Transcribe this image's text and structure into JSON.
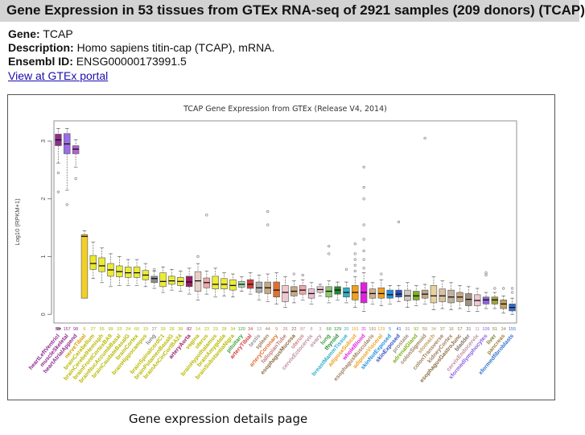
{
  "header": {
    "title": "Gene Expression in 53 tissues from GTEx RNA-seq of 2921 samples (209 donors) (TCAP)"
  },
  "info": {
    "gene_label": "Gene:",
    "gene_value": "TCAP",
    "description_label": "Description:",
    "description_value": "Homo sapiens titin-cap (TCAP), mRNA.",
    "ensembl_label": "Ensembl ID:",
    "ensembl_value": "ENSG00000173991.5",
    "portal_link": "View at GTEx portal"
  },
  "caption": "Gene expression details page",
  "chart_data": {
    "type": "box",
    "title": "TCAP Gene Expression from GTEx (Release V4, 2014)",
    "ylabel": "Log10 (RPKM+1)",
    "ylim": [
      -0.15,
      3.35
    ],
    "yticks": [
      0,
      1,
      2,
      3
    ],
    "grid": false,
    "n_label": "N=",
    "categories": [
      "heartLeftVentricl",
      "muscleSkeletal",
      "heartAtrialAppend",
      "nerveTibial",
      "brainCerebellum",
      "brainCerebelHemisph",
      "brainFrontCortexBA9",
      "brainNucAccumbBasal",
      "brainCaudateBasalG",
      "brainCortex",
      "brainHippocampus",
      "lung",
      "brainSpinalcordC1",
      "brainPutamenBasalG",
      "brainAnCinCortBA24",
      "arteryAorta",
      "vagina",
      "uterus",
      "brainHypothalamus",
      "brainAmygdala",
      "brainSubstantiaNigra",
      "pituitary",
      "arteryTibial",
      "testis",
      "spleen",
      "arteryCoronary",
      "fallopianTube",
      "esophagusMucosa",
      "uterus",
      "cervixEctocervix",
      "ovary",
      "lung",
      "thyroid",
      "breastMammTissue",
      "adiposeSubcut",
      "wholeBlood",
      "esophagusMuscularis",
      "adiposeVisceral",
      "skinNotExposed",
      "skinExposed",
      "prostate",
      "adrenalGland",
      "colonSigmoid",
      "stomach",
      "colonTransverse",
      "kidneyCortex",
      "esophagusGastroJunc",
      "bladder",
      "cervixEndocervix",
      "xformedlymphocytes",
      "liver",
      "pancreas",
      "xformedfibroblasts"
    ],
    "colors": [
      "#8e2c8e",
      "#9a6ee6",
      "#b460d8",
      "#f2cf27",
      "#ece82c",
      "#ecec36",
      "#ecec36",
      "#ecec36",
      "#ecec36",
      "#ecec36",
      "#ecec36",
      "#8e8e8e",
      "#ecec36",
      "#ecec36",
      "#ecec36",
      "#9b1c64",
      "#e8d0c8",
      "#f0a8a8",
      "#ecec36",
      "#ecec36",
      "#ecec36",
      "#a8d8a8",
      "#d83c3c",
      "#b0b0b0",
      "#c8a880",
      "#e07030",
      "#f0c8d0",
      "#c8a880",
      "#f0a8a8",
      "#e8c0d0",
      "#f0c8d0",
      "#8ec870",
      "#208a30",
      "#30b0c8",
      "#f0a020",
      "#e020e0",
      "#d0b090",
      "#f0a020",
      "#2090e0",
      "#3050c0",
      "#d0c8c0",
      "#80b020",
      "#c0a888",
      "#e8d0a0",
      "#d8c0a0",
      "#c0b0a0",
      "#c8a880",
      "#a09080",
      "#f0c8d0",
      "#9060e0",
      "#a0a040",
      "#c0a060",
      "#3070d0"
    ],
    "label_colors": [
      "#8e2c8e",
      "#8e2c8e",
      "#8e2c8e",
      "#d4a000",
      "#b8b800",
      "#b8b800",
      "#b8b800",
      "#b8b800",
      "#b8b800",
      "#b8b800",
      "#b8b800",
      "#888888",
      "#b8b800",
      "#b8b800",
      "#b8b800",
      "#9b1c64",
      "#b8b800",
      "#b8b800",
      "#b8b800",
      "#b8b800",
      "#b8b800",
      "#40a040",
      "#d83c3c",
      "#999999",
      "#a08060",
      "#e07030",
      "#c08080",
      "#8a6a40",
      "#d08080",
      "#c090a0",
      "#c090a0",
      "#40a040",
      "#208a30",
      "#30b0c8",
      "#f0a020",
      "#e020e0",
      "#a08060",
      "#f0a020",
      "#2090e0",
      "#3050c0",
      "#a09080",
      "#80b020",
      "#a08060",
      "#c0a060",
      "#a08060",
      "#a08060",
      "#8a6a40",
      "#807060",
      "#c090a0",
      "#9060e0",
      "#808030",
      "#a08040",
      "#3070d0"
    ],
    "n_values": [
      "95",
      "157",
      "98",
      "6",
      "27",
      "55",
      "99",
      "33",
      "24",
      "60",
      "19",
      "27",
      "39",
      "28",
      "38",
      "82",
      "14",
      "23",
      "29",
      "28",
      "34",
      "120",
      "34",
      "13",
      "44",
      "9",
      "26",
      "22",
      "87",
      "8",
      "3",
      "68",
      "129",
      "20",
      "191",
      "31",
      "191",
      "129",
      "5",
      "41",
      "31",
      "92",
      "55",
      "34",
      "37",
      "16",
      "17",
      "31",
      "11",
      "109",
      "51",
      "34",
      "155"
    ],
    "values": [
      {
        "q1": 2.92,
        "median": 3.02,
        "q3": 3.12,
        "wlo": 2.62,
        "whi": 3.22,
        "out": [
          2.45,
          2.12
        ]
      },
      {
        "q1": 2.78,
        "median": 2.95,
        "q3": 3.13,
        "wlo": 2.15,
        "whi": 3.22,
        "out": [
          1.9
        ]
      },
      {
        "q1": 2.78,
        "median": 2.86,
        "q3": 2.92,
        "wlo": 2.55,
        "whi": 3.02,
        "out": [
          2.35
        ]
      },
      {
        "q1": 0.28,
        "median": 1.35,
        "q3": 1.38,
        "wlo": 0.28,
        "whi": 1.45,
        "out": []
      },
      {
        "q1": 0.78,
        "median": 0.88,
        "q3": 1.02,
        "wlo": 0.62,
        "whi": 1.25,
        "out": []
      },
      {
        "q1": 0.74,
        "median": 0.84,
        "q3": 0.98,
        "wlo": 0.55,
        "whi": 1.15,
        "out": []
      },
      {
        "q1": 0.66,
        "median": 0.77,
        "q3": 0.88,
        "wlo": 0.48,
        "whi": 1.05,
        "out": []
      },
      {
        "q1": 0.65,
        "median": 0.74,
        "q3": 0.84,
        "wlo": 0.5,
        "whi": 1.0,
        "out": []
      },
      {
        "q1": 0.64,
        "median": 0.72,
        "q3": 0.82,
        "wlo": 0.5,
        "whi": 0.95,
        "out": []
      },
      {
        "q1": 0.64,
        "median": 0.72,
        "q3": 0.82,
        "wlo": 0.5,
        "whi": 0.95,
        "out": []
      },
      {
        "q1": 0.6,
        "median": 0.68,
        "q3": 0.76,
        "wlo": 0.48,
        "whi": 0.88,
        "out": []
      },
      {
        "q1": 0.55,
        "median": 0.62,
        "q3": 0.66,
        "wlo": 0.45,
        "whi": 0.75,
        "out": [
          0.78
        ]
      },
      {
        "q1": 0.48,
        "median": 0.57,
        "q3": 0.72,
        "wlo": 0.38,
        "whi": 0.82,
        "out": []
      },
      {
        "q1": 0.52,
        "median": 0.58,
        "q3": 0.66,
        "wlo": 0.42,
        "whi": 0.78,
        "out": []
      },
      {
        "q1": 0.5,
        "median": 0.57,
        "q3": 0.64,
        "wlo": 0.4,
        "whi": 0.75,
        "out": []
      },
      {
        "q1": 0.48,
        "median": 0.56,
        "q3": 0.66,
        "wlo": 0.35,
        "whi": 0.8,
        "out": []
      },
      {
        "q1": 0.4,
        "median": 0.58,
        "q3": 0.74,
        "wlo": 0.25,
        "whi": 0.88,
        "out": [
          1.0
        ]
      },
      {
        "q1": 0.46,
        "median": 0.55,
        "q3": 0.63,
        "wlo": 0.35,
        "whi": 0.75,
        "out": [
          1.72
        ]
      },
      {
        "q1": 0.44,
        "median": 0.52,
        "q3": 0.66,
        "wlo": 0.3,
        "whi": 0.8,
        "out": []
      },
      {
        "q1": 0.44,
        "median": 0.52,
        "q3": 0.62,
        "wlo": 0.32,
        "whi": 0.72,
        "out": []
      },
      {
        "q1": 0.42,
        "median": 0.5,
        "q3": 0.6,
        "wlo": 0.3,
        "whi": 0.7,
        "out": []
      },
      {
        "q1": 0.47,
        "median": 0.52,
        "q3": 0.57,
        "wlo": 0.4,
        "whi": 0.65,
        "out": []
      },
      {
        "q1": 0.45,
        "median": 0.52,
        "q3": 0.6,
        "wlo": 0.35,
        "whi": 0.72,
        "out": []
      },
      {
        "q1": 0.38,
        "median": 0.46,
        "q3": 0.56,
        "wlo": 0.25,
        "whi": 0.68,
        "out": []
      },
      {
        "q1": 0.36,
        "median": 0.46,
        "q3": 0.56,
        "wlo": 0.22,
        "whi": 0.7,
        "out": [
          1.55,
          1.78
        ]
      },
      {
        "q1": 0.3,
        "median": 0.42,
        "q3": 0.56,
        "wlo": 0.18,
        "whi": 0.72,
        "out": []
      },
      {
        "q1": 0.22,
        "median": 0.38,
        "q3": 0.5,
        "wlo": 0.12,
        "whi": 0.65,
        "out": []
      },
      {
        "q1": 0.32,
        "median": 0.4,
        "q3": 0.48,
        "wlo": 0.2,
        "whi": 0.58,
        "out": [
          0.7
        ]
      },
      {
        "q1": 0.35,
        "median": 0.42,
        "q3": 0.5,
        "wlo": 0.25,
        "whi": 0.6,
        "out": [
          0.68
        ]
      },
      {
        "q1": 0.28,
        "median": 0.36,
        "q3": 0.44,
        "wlo": 0.18,
        "whi": 0.55,
        "out": []
      },
      {
        "q1": 0.38,
        "median": 0.43,
        "q3": 0.48,
        "wlo": 0.32,
        "whi": 0.52,
        "out": []
      },
      {
        "q1": 0.3,
        "median": 0.4,
        "q3": 0.48,
        "wlo": 0.2,
        "whi": 0.58,
        "out": [
          1.05,
          1.18
        ]
      },
      {
        "q1": 0.35,
        "median": 0.42,
        "q3": 0.48,
        "wlo": 0.25,
        "whi": 0.56,
        "out": []
      },
      {
        "q1": 0.3,
        "median": 0.38,
        "q3": 0.46,
        "wlo": 0.2,
        "whi": 0.56,
        "out": [
          0.78
        ]
      },
      {
        "q1": 0.25,
        "median": 0.38,
        "q3": 0.5,
        "wlo": 0.12,
        "whi": 0.65,
        "out": [
          0.75,
          0.85,
          0.95,
          1.05,
          1.22
        ]
      },
      {
        "q1": 0.2,
        "median": 0.38,
        "q3": 0.55,
        "wlo": 0.05,
        "whi": 0.72,
        "out": [
          0.8,
          0.95,
          1.1,
          1.3,
          1.55,
          2.0,
          2.2,
          2.55
        ]
      },
      {
        "q1": 0.28,
        "median": 0.36,
        "q3": 0.44,
        "wlo": 0.18,
        "whi": 0.55,
        "out": []
      },
      {
        "q1": 0.28,
        "median": 0.36,
        "q3": 0.46,
        "wlo": 0.15,
        "whi": 0.6,
        "out": [
          0.7
        ]
      },
      {
        "q1": 0.28,
        "median": 0.34,
        "q3": 0.42,
        "wlo": 0.18,
        "whi": 0.5,
        "out": []
      },
      {
        "q1": 0.3,
        "median": 0.35,
        "q3": 0.42,
        "wlo": 0.22,
        "whi": 0.5,
        "out": [
          1.6
        ]
      },
      {
        "q1": 0.24,
        "median": 0.32,
        "q3": 0.42,
        "wlo": 0.12,
        "whi": 0.55,
        "out": []
      },
      {
        "q1": 0.25,
        "median": 0.32,
        "q3": 0.4,
        "wlo": 0.15,
        "whi": 0.5,
        "out": []
      },
      {
        "q1": 0.28,
        "median": 0.35,
        "q3": 0.42,
        "wlo": 0.18,
        "whi": 0.52,
        "out": [
          3.05
        ]
      },
      {
        "q1": 0.2,
        "median": 0.32,
        "q3": 0.5,
        "wlo": 0.08,
        "whi": 0.65,
        "out": []
      },
      {
        "q1": 0.22,
        "median": 0.32,
        "q3": 0.44,
        "wlo": 0.1,
        "whi": 0.58,
        "out": []
      },
      {
        "q1": 0.2,
        "median": 0.3,
        "q3": 0.42,
        "wlo": 0.08,
        "whi": 0.55,
        "out": []
      },
      {
        "q1": 0.22,
        "median": 0.3,
        "q3": 0.38,
        "wlo": 0.1,
        "whi": 0.5,
        "out": []
      },
      {
        "q1": 0.15,
        "median": 0.26,
        "q3": 0.36,
        "wlo": 0.05,
        "whi": 0.48,
        "out": []
      },
      {
        "q1": 0.15,
        "median": 0.24,
        "q3": 0.34,
        "wlo": 0.05,
        "whi": 0.45,
        "out": []
      },
      {
        "q1": 0.18,
        "median": 0.25,
        "q3": 0.3,
        "wlo": 0.1,
        "whi": 0.38,
        "out": [
          0.68,
          0.72
        ]
      },
      {
        "q1": 0.18,
        "median": 0.25,
        "q3": 0.3,
        "wlo": 0.1,
        "whi": 0.38,
        "out": [
          0.45
        ]
      },
      {
        "q1": 0.1,
        "median": 0.18,
        "q3": 0.25,
        "wlo": 0.02,
        "whi": 0.32,
        "out": [
          0.45
        ]
      },
      {
        "q1": 0.06,
        "median": 0.12,
        "q3": 0.18,
        "wlo": 0.0,
        "whi": 0.28,
        "out": [
          0.38,
          0.45
        ]
      }
    ]
  }
}
